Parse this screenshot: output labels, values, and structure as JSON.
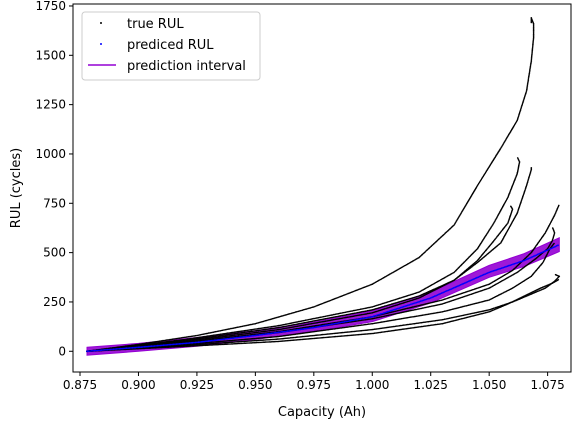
{
  "chart_data": {
    "type": "scatter",
    "title": "",
    "xlabel": "Capacity (Ah)",
    "ylabel": "RUL (cycles)",
    "xlim": [
      0.872,
      1.085
    ],
    "ylim": [
      -105,
      1760
    ],
    "xticks": [
      0.875,
      0.9,
      0.925,
      0.95,
      0.975,
      1.0,
      1.025,
      1.05,
      1.075
    ],
    "xtick_labels": [
      "0.875",
      "0.900",
      "0.925",
      "0.950",
      "0.975",
      "1.000",
      "1.025",
      "1.050",
      "1.075"
    ],
    "yticks": [
      0,
      250,
      500,
      750,
      1000,
      1250,
      1500,
      1750
    ],
    "ytick_labels": [
      "0",
      "250",
      "500",
      "750",
      "1000",
      "1250",
      "1500",
      "1750"
    ],
    "grid": false,
    "legend": {
      "placement": "top-left",
      "entries": [
        "true RUL",
        "prediced RUL",
        "prediction interval"
      ]
    },
    "colors": {
      "true": "#000000",
      "pred": "#0000ff",
      "interval": "#9400d3"
    },
    "true_rul_series": [
      {
        "x": [
          0.878,
          0.9,
          0.925,
          0.95,
          0.975,
          1.0,
          1.02,
          1.035,
          1.045,
          1.055,
          1.062,
          1.066,
          1.068,
          1.069,
          1.069,
          1.068,
          1.068
        ],
        "y": [
          0,
          35,
          80,
          140,
          225,
          340,
          475,
          640,
          840,
          1030,
          1170,
          1320,
          1470,
          1590,
          1660,
          1690,
          1660
        ]
      },
      {
        "x": [
          0.878,
          0.92,
          0.96,
          1.0,
          1.02,
          1.035,
          1.045,
          1.052,
          1.058,
          1.062,
          1.063,
          1.062
        ],
        "y": [
          0,
          60,
          130,
          225,
          300,
          400,
          520,
          650,
          780,
          900,
          960,
          985
        ]
      },
      {
        "x": [
          0.878,
          0.92,
          0.96,
          1.0,
          1.02,
          1.035,
          1.045,
          1.055,
          1.062,
          1.066,
          1.068,
          1.068
        ],
        "y": [
          0,
          55,
          120,
          210,
          280,
          360,
          450,
          550,
          700,
          840,
          920,
          935
        ]
      },
      {
        "x": [
          0.878,
          0.92,
          0.96,
          1.0,
          1.02,
          1.035,
          1.045,
          1.052,
          1.058,
          1.06,
          1.059
        ],
        "y": [
          0,
          50,
          110,
          195,
          270,
          360,
          460,
          560,
          650,
          720,
          740
        ]
      },
      {
        "x": [
          0.878,
          0.92,
          0.96,
          1.0,
          1.03,
          1.05,
          1.06,
          1.068,
          1.074,
          1.078,
          1.08
        ],
        "y": [
          0,
          45,
          100,
          175,
          260,
          340,
          410,
          500,
          600,
          690,
          745
        ]
      },
      {
        "x": [
          0.878,
          0.92,
          0.96,
          1.0,
          1.03,
          1.05,
          1.062,
          1.07,
          1.075,
          1.077,
          1.078,
          1.077
        ],
        "y": [
          0,
          40,
          95,
          165,
          240,
          320,
          400,
          470,
          520,
          560,
          600,
          630
        ]
      },
      {
        "x": [
          0.878,
          0.92,
          0.96,
          1.0,
          1.03,
          1.05,
          1.06,
          1.068,
          1.073,
          1.076,
          1.078
        ],
        "y": [
          0,
          35,
          75,
          140,
          200,
          260,
          320,
          380,
          450,
          520,
          550
        ]
      },
      {
        "x": [
          0.878,
          0.92,
          0.96,
          1.0,
          1.03,
          1.05,
          1.06,
          1.068,
          1.074,
          1.078,
          1.08,
          1.078
        ],
        "y": [
          0,
          30,
          62,
          110,
          160,
          210,
          250,
          290,
          320,
          355,
          380,
          390
        ]
      },
      {
        "x": [
          0.878,
          0.92,
          0.96,
          1.0,
          1.03,
          1.05,
          1.058,
          1.065,
          1.072,
          1.077,
          1.08
        ],
        "y": [
          0,
          25,
          50,
          90,
          140,
          200,
          240,
          280,
          320,
          345,
          365
        ]
      }
    ],
    "predicted_rul": {
      "x": [
        0.878,
        0.9,
        0.925,
        0.95,
        0.975,
        1.0,
        1.025,
        1.05,
        1.065,
        1.08
      ],
      "y": [
        0,
        20,
        45,
        80,
        120,
        175,
        270,
        400,
        460,
        540
      ]
    },
    "prediction_interval": {
      "x": [
        0.878,
        0.9,
        0.925,
        0.95,
        0.975,
        1.0,
        1.025,
        1.05,
        1.065,
        1.08
      ],
      "lower": [
        -20,
        0,
        25,
        60,
        100,
        150,
        245,
        375,
        430,
        505
      ],
      "upper": [
        20,
        40,
        70,
        105,
        148,
        205,
        300,
        435,
        495,
        575
      ]
    }
  }
}
